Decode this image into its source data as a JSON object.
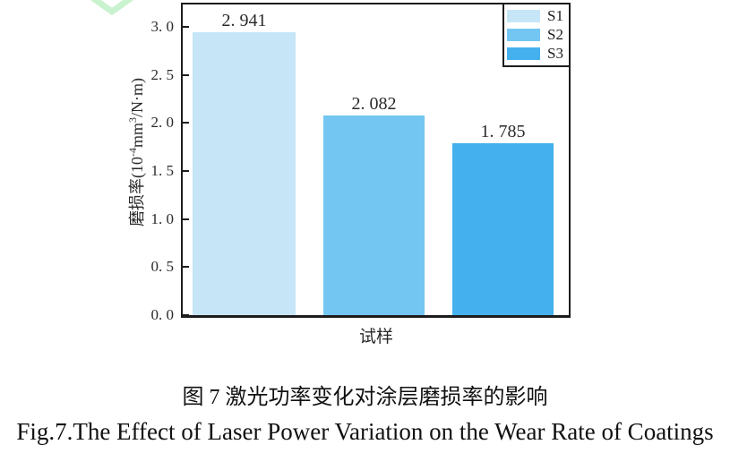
{
  "chart_data": {
    "type": "bar",
    "categories": [
      "S1",
      "S2",
      "S3"
    ],
    "values": [
      2.941,
      2.082,
      1.785
    ],
    "title": "",
    "xlabel": "试样",
    "ylabel": "磨损率(10⁻⁴mm³/N·m)",
    "ylim": [
      0,
      3.25
    ],
    "yticks": [
      0.0,
      0.5,
      1.0,
      1.5,
      2.0,
      2.5,
      3.0
    ],
    "grid": false,
    "legend": {
      "position": "upper right",
      "entries": [
        "S1",
        "S2",
        "S3"
      ]
    },
    "bar_colors": [
      "#c6e6f8",
      "#74c6f2",
      "#44b1ee"
    ]
  },
  "chart_ui": {
    "bar_value_labels": [
      "2. 941",
      "2. 082",
      "1. 785"
    ],
    "ytick_labels": [
      "0. 0",
      "0. 5",
      "1. 0",
      "1. 5",
      "2. 0",
      "2. 5",
      "3. 0"
    ],
    "xlabel": "试样",
    "ylabel_parts": {
      "p1": "磨损率(10",
      "sup1": "-4",
      "p2": "mm",
      "sup2": "3",
      "p3": "/N·m)"
    },
    "legend_items": [
      {
        "label": "S1",
        "color": "#c6e6f8"
      },
      {
        "label": "S2",
        "color": "#74c6f2"
      },
      {
        "label": "S3",
        "color": "#44b1ee"
      }
    ],
    "axis_color": "#1c1c1c"
  },
  "caption": {
    "line1_zh": "图 7 激光功率变化对涂层磨损率的影响",
    "line2_en": "Fig.7.The Effect of Laser Power Variation on the Wear Rate of Coatings"
  },
  "decoration": {
    "chevron_color": "#c9f3cf"
  }
}
